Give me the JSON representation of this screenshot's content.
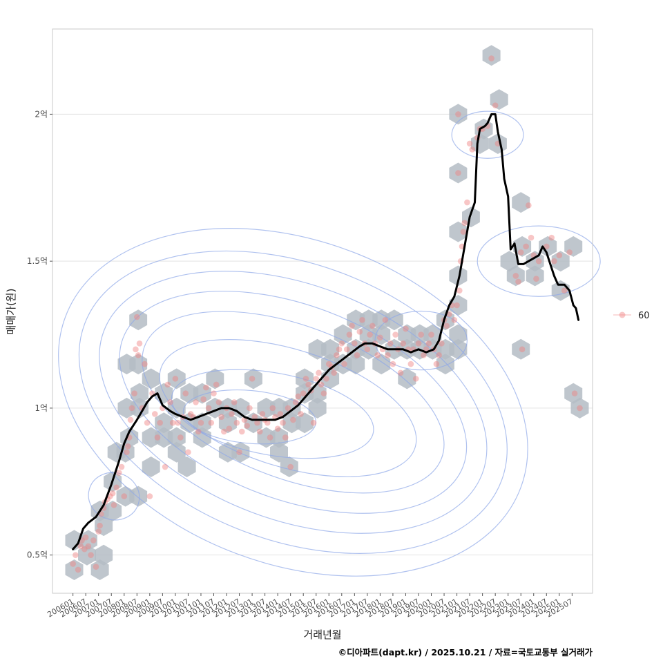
{
  "chart_data": {
    "type": "scatter",
    "ylabel": "매매가(원)",
    "xlabel": "거래년월",
    "caption": "©디아파트(dapt.kr) / 2025.10.21 / 자료=국토교통부 실거래가",
    "y_ticks": [
      {
        "value": 0.5,
        "label": "0.5억"
      },
      {
        "value": 1.0,
        "label": "1억"
      },
      {
        "value": 1.5,
        "label": "1.5억"
      },
      {
        "value": 2.0,
        "label": "2억"
      }
    ],
    "ylim": [
      0.37,
      2.29
    ],
    "xlim": [
      2005.2,
      2026.3
    ],
    "x_ticks": [
      "200601",
      "200607",
      "200701",
      "200707",
      "200801",
      "200807",
      "200901",
      "200907",
      "201001",
      "201007",
      "201101",
      "201107",
      "201201",
      "201207",
      "201301",
      "201307",
      "201401",
      "201407",
      "201501",
      "201507",
      "201601",
      "201607",
      "201701",
      "201707",
      "201801",
      "201807",
      "201901",
      "201907",
      "202001",
      "202007",
      "202101",
      "202107",
      "202201",
      "202207",
      "202301",
      "202307",
      "202401",
      "202407",
      "202501",
      "202507"
    ],
    "legend": [
      {
        "label": "60",
        "color": "#f08080"
      }
    ],
    "colors": {
      "point": "#f08080",
      "hex": "#b4bcc4",
      "trend": "#000000",
      "contour": "#8fa8e8",
      "grid": "#e3e3e3",
      "panel_border": "#c8c8c8"
    },
    "trend": [
      [
        2006.0,
        0.52
      ],
      [
        2006.2,
        0.54
      ],
      [
        2006.4,
        0.59
      ],
      [
        2006.6,
        0.61
      ],
      [
        2006.9,
        0.63
      ],
      [
        2007.2,
        0.67
      ],
      [
        2007.5,
        0.74
      ],
      [
        2007.8,
        0.82
      ],
      [
        2008.0,
        0.88
      ],
      [
        2008.2,
        0.92
      ],
      [
        2008.5,
        0.96
      ],
      [
        2008.7,
        0.99
      ],
      [
        2008.9,
        1.02
      ],
      [
        2009.1,
        1.04
      ],
      [
        2009.3,
        1.05
      ],
      [
        2009.5,
        1.01
      ],
      [
        2009.8,
        0.99
      ],
      [
        2010.0,
        0.98
      ],
      [
        2010.3,
        0.97
      ],
      [
        2010.6,
        0.96
      ],
      [
        2010.9,
        0.97
      ],
      [
        2011.2,
        0.98
      ],
      [
        2011.5,
        0.99
      ],
      [
        2011.8,
        1.0
      ],
      [
        2012.1,
        1.0
      ],
      [
        2012.4,
        0.99
      ],
      [
        2012.7,
        0.97
      ],
      [
        2013.0,
        0.96
      ],
      [
        2013.3,
        0.96
      ],
      [
        2013.6,
        0.96
      ],
      [
        2013.9,
        0.96
      ],
      [
        2014.2,
        0.97
      ],
      [
        2014.5,
        0.99
      ],
      [
        2014.8,
        1.01
      ],
      [
        2015.1,
        1.04
      ],
      [
        2015.4,
        1.07
      ],
      [
        2015.7,
        1.1
      ],
      [
        2016.0,
        1.13
      ],
      [
        2016.3,
        1.15
      ],
      [
        2016.6,
        1.17
      ],
      [
        2016.9,
        1.19
      ],
      [
        2017.2,
        1.21
      ],
      [
        2017.4,
        1.22
      ],
      [
        2017.7,
        1.22
      ],
      [
        2018.0,
        1.21
      ],
      [
        2018.3,
        1.2
      ],
      [
        2018.6,
        1.2
      ],
      [
        2018.9,
        1.2
      ],
      [
        2019.2,
        1.19
      ],
      [
        2019.5,
        1.2
      ],
      [
        2019.8,
        1.19
      ],
      [
        2020.1,
        1.2
      ],
      [
        2020.3,
        1.23
      ],
      [
        2020.5,
        1.3
      ],
      [
        2020.7,
        1.35
      ],
      [
        2020.9,
        1.38
      ],
      [
        2021.1,
        1.45
      ],
      [
        2021.3,
        1.55
      ],
      [
        2021.5,
        1.65
      ],
      [
        2021.7,
        1.7
      ],
      [
        2021.8,
        1.9
      ],
      [
        2021.9,
        1.95
      ],
      [
        2022.1,
        1.96
      ],
      [
        2022.2,
        1.97
      ],
      [
        2022.35,
        2.0
      ],
      [
        2022.5,
        2.0
      ],
      [
        2022.6,
        1.94
      ],
      [
        2022.75,
        1.88
      ],
      [
        2022.85,
        1.78
      ],
      [
        2023.0,
        1.72
      ],
      [
        2023.1,
        1.54
      ],
      [
        2023.25,
        1.56
      ],
      [
        2023.4,
        1.49
      ],
      [
        2023.6,
        1.49
      ],
      [
        2023.8,
        1.5
      ],
      [
        2024.0,
        1.51
      ],
      [
        2024.2,
        1.52
      ],
      [
        2024.35,
        1.55
      ],
      [
        2024.5,
        1.53
      ],
      [
        2024.65,
        1.49
      ],
      [
        2024.8,
        1.45
      ],
      [
        2024.95,
        1.42
      ],
      [
        2025.2,
        1.42
      ],
      [
        2025.4,
        1.4
      ],
      [
        2025.55,
        1.35
      ],
      [
        2025.65,
        1.34
      ],
      [
        2025.75,
        1.3
      ]
    ],
    "hexbins": [
      [
        2006.05,
        0.55
      ],
      [
        2006.05,
        0.45
      ],
      [
        2006.55,
        0.5
      ],
      [
        2006.6,
        0.55
      ],
      [
        2007.05,
        0.45
      ],
      [
        2007.2,
        0.5
      ],
      [
        2007.2,
        0.6
      ],
      [
        2007.05,
        0.65
      ],
      [
        2007.55,
        0.65
      ],
      [
        2007.55,
        0.75
      ],
      [
        2007.7,
        0.85
      ],
      [
        2008.05,
        0.7
      ],
      [
        2008.05,
        0.85
      ],
      [
        2008.2,
        0.9
      ],
      [
        2008.55,
        0.7
      ],
      [
        2008.55,
        1.3
      ],
      [
        2008.1,
        1.0
      ],
      [
        2008.6,
        1.0
      ],
      [
        2008.55,
        1.15
      ],
      [
        2008.1,
        1.15
      ],
      [
        2008.6,
        1.05
      ],
      [
        2009.05,
        1.1
      ],
      [
        2009.05,
        0.9
      ],
      [
        2009.05,
        0.8
      ],
      [
        2009.55,
        1.05
      ],
      [
        2009.55,
        0.95
      ],
      [
        2009.55,
        0.9
      ],
      [
        2010.05,
        1.1
      ],
      [
        2010.05,
        1.0
      ],
      [
        2010.05,
        0.9
      ],
      [
        2010.05,
        0.85
      ],
      [
        2010.55,
        1.05
      ],
      [
        2010.55,
        0.95
      ],
      [
        2010.45,
        0.8
      ],
      [
        2011.05,
        1.05
      ],
      [
        2011.05,
        0.95
      ],
      [
        2011.05,
        0.9
      ],
      [
        2011.55,
        1.0
      ],
      [
        2011.55,
        1.1
      ],
      [
        2012.05,
        1.0
      ],
      [
        2012.05,
        0.95
      ],
      [
        2012.05,
        0.85
      ],
      [
        2012.55,
        1.0
      ],
      [
        2012.55,
        0.85
      ],
      [
        2013.05,
        1.1
      ],
      [
        2013.05,
        0.95
      ],
      [
        2013.55,
        1.0
      ],
      [
        2013.55,
        0.9
      ],
      [
        2014.05,
        1.0
      ],
      [
        2014.05,
        0.9
      ],
      [
        2014.05,
        0.85
      ],
      [
        2014.45,
        0.8
      ],
      [
        2014.55,
        0.95
      ],
      [
        2014.55,
        1.0
      ],
      [
        2015.05,
        1.05
      ],
      [
        2015.05,
        0.95
      ],
      [
        2015.05,
        1.1
      ],
      [
        2015.55,
        1.05
      ],
      [
        2015.55,
        1.0
      ],
      [
        2015.55,
        1.2
      ],
      [
        2016.05,
        1.1
      ],
      [
        2016.05,
        1.15
      ],
      [
        2016.05,
        1.2
      ],
      [
        2016.55,
        1.15
      ],
      [
        2016.55,
        1.25
      ],
      [
        2017.05,
        1.2
      ],
      [
        2017.05,
        1.3
      ],
      [
        2017.05,
        1.15
      ],
      [
        2017.55,
        1.25
      ],
      [
        2017.55,
        1.3
      ],
      [
        2017.55,
        1.2
      ],
      [
        2018.05,
        1.25
      ],
      [
        2018.05,
        1.15
      ],
      [
        2018.05,
        1.3
      ],
      [
        2018.55,
        1.2
      ],
      [
        2018.55,
        1.3
      ],
      [
        2019.05,
        1.25
      ],
      [
        2019.05,
        1.2
      ],
      [
        2019.05,
        1.1
      ],
      [
        2019.55,
        1.2
      ],
      [
        2019.55,
        1.25
      ],
      [
        2020.05,
        1.2
      ],
      [
        2020.05,
        1.25
      ],
      [
        2020.55,
        1.15
      ],
      [
        2020.55,
        1.2
      ],
      [
        2020.55,
        1.3
      ],
      [
        2021.05,
        1.25
      ],
      [
        2021.05,
        1.35
      ],
      [
        2021.05,
        1.2
      ],
      [
        2021.05,
        1.45
      ],
      [
        2021.05,
        1.6
      ],
      [
        2021.05,
        1.8
      ],
      [
        2021.05,
        2.0
      ],
      [
        2021.55,
        1.65
      ],
      [
        2021.9,
        1.9
      ],
      [
        2022.05,
        1.95
      ],
      [
        2022.35,
        2.2
      ],
      [
        2022.6,
        1.9
      ],
      [
        2022.65,
        2.05
      ],
      [
        2023.05,
        1.5
      ],
      [
        2023.3,
        1.45
      ],
      [
        2023.55,
        1.55
      ],
      [
        2023.5,
        1.7
      ],
      [
        2023.5,
        1.2
      ],
      [
        2024.05,
        1.5
      ],
      [
        2024.05,
        1.45
      ],
      [
        2024.55,
        1.55
      ],
      [
        2025.05,
        1.5
      ],
      [
        2025.05,
        1.4
      ],
      [
        2025.55,
        1.55
      ],
      [
        2025.55,
        1.05
      ],
      [
        2025.8,
        1.0
      ]
    ],
    "points": [
      [
        2006.0,
        0.47
      ],
      [
        2006.1,
        0.5
      ],
      [
        2006.2,
        0.45
      ],
      [
        2006.3,
        0.53
      ],
      [
        2006.35,
        0.55
      ],
      [
        2006.45,
        0.52
      ],
      [
        2006.5,
        0.56
      ],
      [
        2006.6,
        0.53
      ],
      [
        2006.7,
        0.5
      ],
      [
        2006.8,
        0.55
      ],
      [
        2006.9,
        0.46
      ],
      [
        2007.0,
        0.58
      ],
      [
        2007.05,
        0.6
      ],
      [
        2007.1,
        0.64
      ],
      [
        2007.2,
        0.66
      ],
      [
        2007.25,
        0.68
      ],
      [
        2007.35,
        0.69
      ],
      [
        2007.45,
        0.7
      ],
      [
        2007.55,
        0.71
      ],
      [
        2007.6,
        0.67
      ],
      [
        2007.7,
        0.73
      ],
      [
        2007.8,
        0.78
      ],
      [
        2007.9,
        0.8
      ],
      [
        2008.0,
        0.7
      ],
      [
        2008.1,
        0.85
      ],
      [
        2008.15,
        0.87
      ],
      [
        2008.2,
        0.9
      ],
      [
        2008.25,
        0.96
      ],
      [
        2008.3,
        1.0
      ],
      [
        2008.4,
        1.05
      ],
      [
        2008.45,
        1.2
      ],
      [
        2008.55,
        1.18
      ],
      [
        2008.6,
        1.22
      ],
      [
        2008.5,
        1.31
      ],
      [
        2008.7,
        1.0
      ],
      [
        2008.8,
        1.15
      ],
      [
        2008.9,
        0.95
      ],
      [
        2009.0,
        0.7
      ],
      [
        2009.1,
        1.05
      ],
      [
        2009.2,
        0.98
      ],
      [
        2009.3,
        0.9
      ],
      [
        2009.4,
        0.95
      ],
      [
        2009.5,
        1.0
      ],
      [
        2009.6,
        0.8
      ],
      [
        2009.7,
        1.08
      ],
      [
        2009.8,
        1.02
      ],
      [
        2009.9,
        0.95
      ],
      [
        2010.0,
        1.1
      ],
      [
        2010.1,
        0.95
      ],
      [
        2010.2,
        0.9
      ],
      [
        2010.3,
        0.97
      ],
      [
        2010.4,
        1.05
      ],
      [
        2010.5,
        0.85
      ],
      [
        2010.6,
        0.98
      ],
      [
        2010.7,
        0.97
      ],
      [
        2010.8,
        1.02
      ],
      [
        2010.9,
        0.92
      ],
      [
        2011.0,
        0.95
      ],
      [
        2011.1,
        1.03
      ],
      [
        2011.2,
        1.07
      ],
      [
        2011.3,
        1.0
      ],
      [
        2011.4,
        0.95
      ],
      [
        2011.5,
        1.05
      ],
      [
        2011.6,
        1.08
      ],
      [
        2011.7,
        1.02
      ],
      [
        2011.8,
        0.97
      ],
      [
        2011.9,
        0.92
      ],
      [
        2012.0,
        1.0
      ],
      [
        2012.1,
        0.93
      ],
      [
        2012.2,
        0.98
      ],
      [
        2012.3,
        1.02
      ],
      [
        2012.4,
        0.95
      ],
      [
        2012.5,
        0.85
      ],
      [
        2012.6,
        0.92
      ],
      [
        2012.7,
        0.96
      ],
      [
        2012.8,
        0.94
      ],
      [
        2012.9,
        1.0
      ],
      [
        2013.0,
        1.1
      ],
      [
        2013.1,
        0.97
      ],
      [
        2013.2,
        0.95
      ],
      [
        2013.3,
        0.92
      ],
      [
        2013.4,
        0.98
      ],
      [
        2013.5,
        0.96
      ],
      [
        2013.6,
        0.95
      ],
      [
        2013.7,
        0.9
      ],
      [
        2013.8,
        1.0
      ],
      [
        2013.9,
        0.97
      ],
      [
        2014.0,
        0.93
      ],
      [
        2014.1,
        0.98
      ],
      [
        2014.2,
        0.95
      ],
      [
        2014.3,
        0.9
      ],
      [
        2014.4,
        1.0
      ],
      [
        2014.5,
        0.8
      ],
      [
        2014.6,
        0.96
      ],
      [
        2014.7,
        1.02
      ],
      [
        2014.8,
        1.04
      ],
      [
        2014.9,
        0.98
      ],
      [
        2015.0,
        1.05
      ],
      [
        2015.1,
        1.1
      ],
      [
        2015.2,
        1.08
      ],
      [
        2015.3,
        1.06
      ],
      [
        2015.4,
        0.95
      ],
      [
        2015.5,
        1.1
      ],
      [
        2015.6,
        1.12
      ],
      [
        2015.7,
        1.08
      ],
      [
        2015.8,
        1.05
      ],
      [
        2015.9,
        1.1
      ],
      [
        2016.0,
        1.15
      ],
      [
        2016.1,
        1.14
      ],
      [
        2016.2,
        1.12
      ],
      [
        2016.3,
        1.18
      ],
      [
        2016.4,
        1.2
      ],
      [
        2016.5,
        1.22
      ],
      [
        2016.6,
        1.15
      ],
      [
        2016.7,
        1.2
      ],
      [
        2016.8,
        1.25
      ],
      [
        2016.9,
        1.28
      ],
      [
        2017.0,
        1.22
      ],
      [
        2017.1,
        1.18
      ],
      [
        2017.2,
        1.26
      ],
      [
        2017.3,
        1.3
      ],
      [
        2017.4,
        1.22
      ],
      [
        2017.5,
        1.2
      ],
      [
        2017.6,
        1.25
      ],
      [
        2017.7,
        1.28
      ],
      [
        2017.8,
        1.22
      ],
      [
        2017.9,
        1.18
      ],
      [
        2018.0,
        1.24
      ],
      [
        2018.1,
        1.2
      ],
      [
        2018.2,
        1.3
      ],
      [
        2018.3,
        1.18
      ],
      [
        2018.4,
        1.22
      ],
      [
        2018.5,
        1.15
      ],
      [
        2018.6,
        1.25
      ],
      [
        2018.7,
        1.2
      ],
      [
        2018.8,
        1.12
      ],
      [
        2018.9,
        1.22
      ],
      [
        2019.0,
        1.27
      ],
      [
        2019.1,
        1.2
      ],
      [
        2019.2,
        1.15
      ],
      [
        2019.3,
        1.2
      ],
      [
        2019.4,
        1.1
      ],
      [
        2019.5,
        1.22
      ],
      [
        2019.6,
        1.25
      ],
      [
        2019.7,
        1.18
      ],
      [
        2019.8,
        1.2
      ],
      [
        2019.9,
        1.22
      ],
      [
        2020.0,
        1.25
      ],
      [
        2020.1,
        1.2
      ],
      [
        2020.2,
        1.15
      ],
      [
        2020.3,
        1.18
      ],
      [
        2020.4,
        1.22
      ],
      [
        2020.5,
        1.3
      ],
      [
        2020.6,
        1.28
      ],
      [
        2020.7,
        1.32
      ],
      [
        2020.8,
        1.35
      ],
      [
        2020.9,
        1.3
      ],
      [
        2021.0,
        1.35
      ],
      [
        2021.1,
        1.4
      ],
      [
        2021.15,
        1.5
      ],
      [
        2021.2,
        1.55
      ],
      [
        2021.25,
        1.6
      ],
      [
        2021.3,
        1.63
      ],
      [
        2021.4,
        1.7
      ],
      [
        2021.05,
        1.8
      ],
      [
        2021.05,
        2.0
      ],
      [
        2021.5,
        1.9
      ],
      [
        2021.6,
        1.88
      ],
      [
        2021.8,
        1.92
      ],
      [
        2021.9,
        1.95
      ],
      [
        2022.0,
        1.95
      ],
      [
        2022.2,
        1.96
      ],
      [
        2022.35,
        2.19
      ],
      [
        2022.5,
        2.03
      ],
      [
        2022.6,
        1.9
      ],
      [
        2023.3,
        1.45
      ],
      [
        2023.4,
        1.43
      ],
      [
        2023.5,
        1.53
      ],
      [
        2023.55,
        1.2
      ],
      [
        2023.8,
        1.69
      ],
      [
        2023.7,
        1.55
      ],
      [
        2023.9,
        1.58
      ],
      [
        2024.0,
        1.52
      ],
      [
        2024.1,
        1.44
      ],
      [
        2024.2,
        1.5
      ],
      [
        2024.5,
        1.55
      ],
      [
        2024.7,
        1.58
      ],
      [
        2024.8,
        1.5
      ],
      [
        2025.0,
        1.52
      ],
      [
        2025.2,
        1.4
      ],
      [
        2025.4,
        1.53
      ],
      [
        2025.6,
        1.05
      ],
      [
        2025.8,
        1.0
      ]
    ]
  }
}
